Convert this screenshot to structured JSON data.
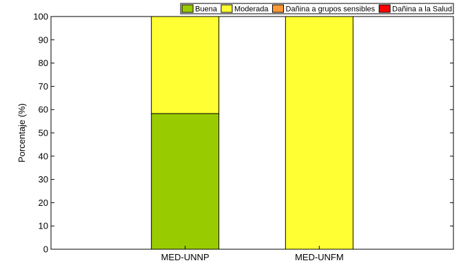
{
  "chart_data": {
    "type": "bar",
    "stacked": true,
    "title": "",
    "xlabel": "",
    "ylabel": "Porcentaje (%)",
    "ylim": [
      0,
      100
    ],
    "yticks": [
      0,
      10,
      20,
      30,
      40,
      50,
      60,
      70,
      80,
      90,
      100
    ],
    "categories": [
      "MED-UNNP",
      "MED-UNFM"
    ],
    "series": [
      {
        "name": "Buena",
        "color": "#99cc00",
        "values": [
          58.3,
          0
        ]
      },
      {
        "name": "Moderada",
        "color": "#ffff33",
        "values": [
          41.7,
          100
        ]
      },
      {
        "name": "Dañina a grupos sensibles",
        "color": "#ff9933",
        "values": [
          0,
          0
        ]
      },
      {
        "name": "Dañina a la Salud",
        "color": "#ff0000",
        "values": [
          0,
          0
        ]
      }
    ],
    "grid": false,
    "legend_position": "top"
  }
}
